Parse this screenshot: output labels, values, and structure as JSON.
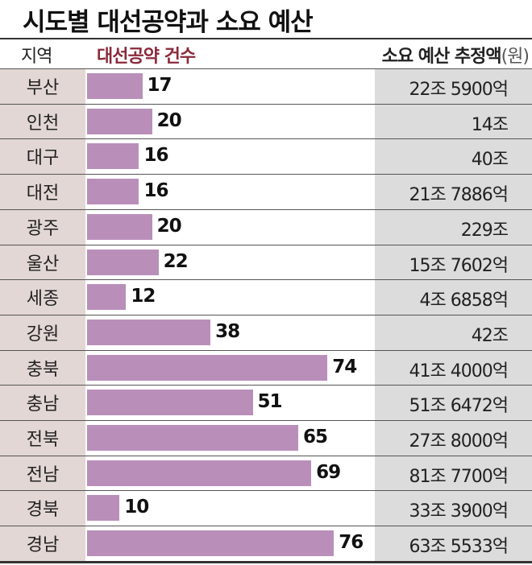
{
  "chart_data": {
    "type": "bar",
    "title": "시도별 대선공약과 소요 예산",
    "columns": {
      "region": "지역",
      "count": "대선공약 건수",
      "budget": "소요 예산 추정액",
      "budget_unit": "(원)"
    },
    "categories": [
      "부산",
      "인천",
      "대구",
      "대전",
      "광주",
      "울산",
      "세종",
      "강원",
      "충북",
      "충남",
      "전북",
      "전남",
      "경북",
      "경남"
    ],
    "values": [
      17,
      20,
      16,
      16,
      20,
      22,
      12,
      38,
      74,
      51,
      65,
      69,
      10,
      76
    ],
    "budgets": [
      "22조 5900억",
      "14조",
      "40조",
      "21조 7886억",
      "229조",
      "15조 7602억",
      "4조 6858억",
      "42조",
      "41조 4000억",
      "51조 6472억",
      "27조 8000억",
      "81조 7700억",
      "33조 3900억",
      "63조 5533억"
    ],
    "bar_color": "#b98fba",
    "header_color": "#8a2a3a"
  }
}
